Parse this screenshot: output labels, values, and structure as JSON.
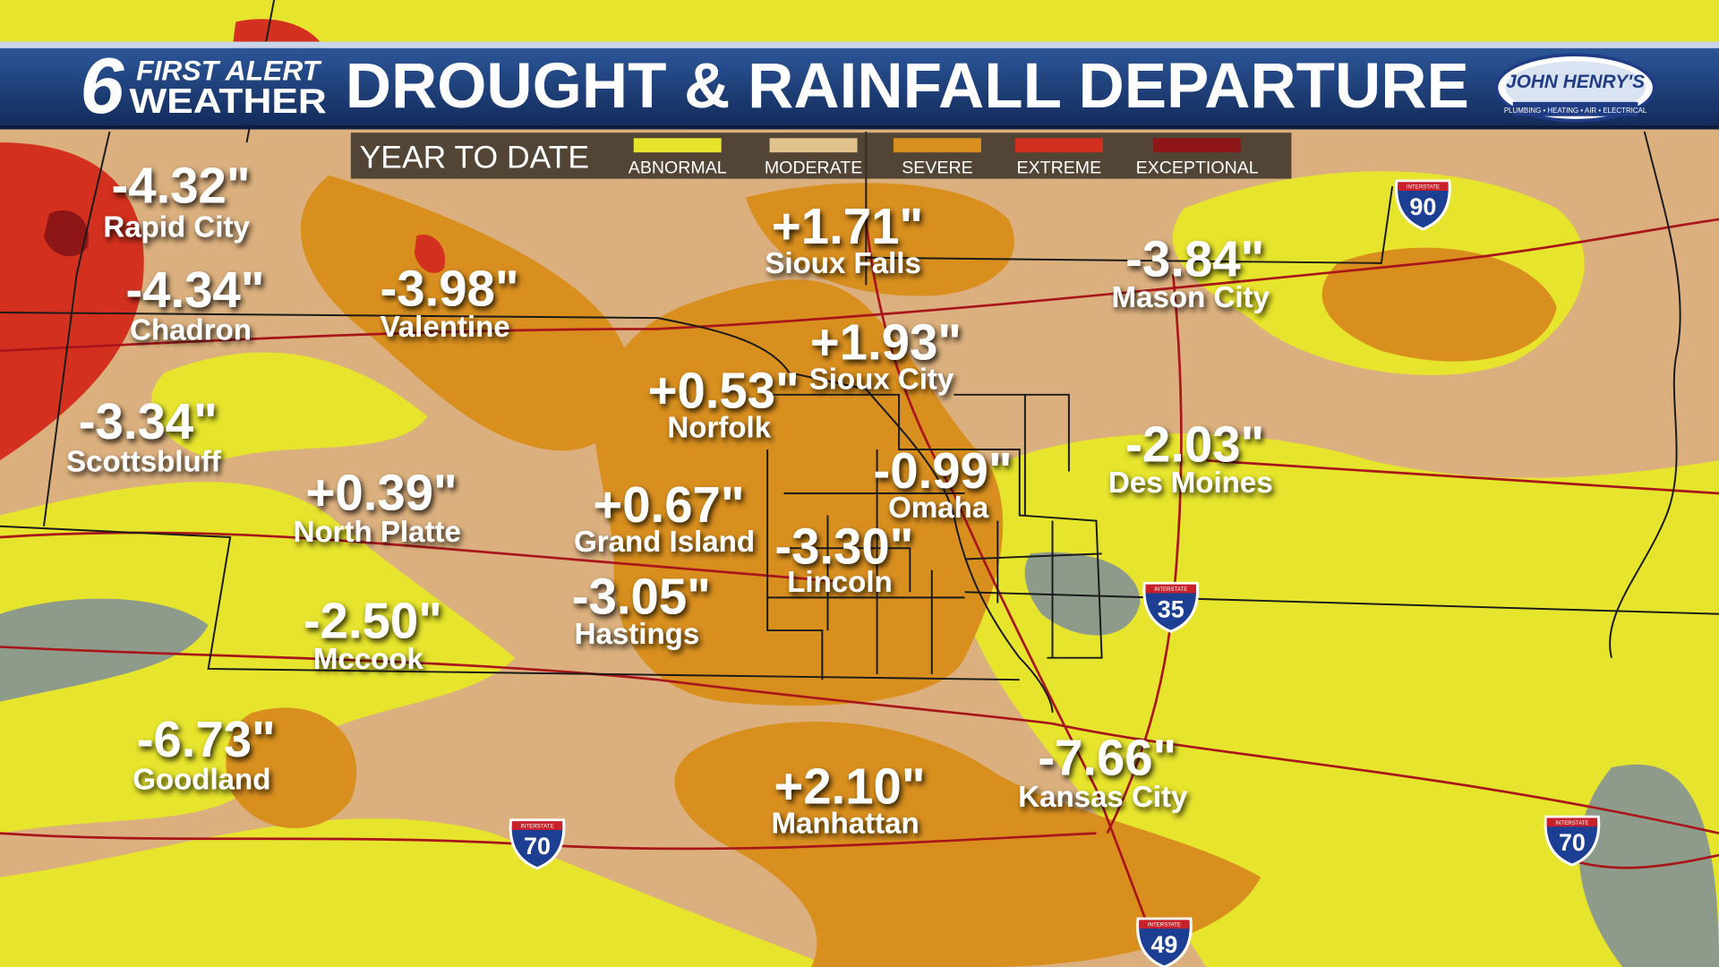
{
  "header": {
    "logo_number": "6",
    "logo_line1": "FIRST ALERT",
    "logo_line2": "WEATHER",
    "title": "DROUGHT & RAINFALL DEPARTURE",
    "sponsor": "JOHN HENRY'S",
    "sponsor_tagline": "PLUMBING • HEATING • AIR • ELECTRICAL"
  },
  "legend": {
    "label": "YEAR TO DATE",
    "items": [
      {
        "name": "ABNORMAL",
        "color": "#e6e42c"
      },
      {
        "name": "MODERATE",
        "color": "#e2c28c"
      },
      {
        "name": "SEVERE",
        "color": "#d98f1e"
      },
      {
        "name": "EXTREME",
        "color": "#d3301f"
      },
      {
        "name": "EXCEPTIONAL",
        "color": "#8e1616"
      }
    ]
  },
  "cities": [
    {
      "name": "Rapid City",
      "value": "-4.32\""
    },
    {
      "name": "Chadron",
      "value": "-4.34\""
    },
    {
      "name": "Valentine",
      "value": "-3.98\""
    },
    {
      "name": "Scottsbluff",
      "value": "-3.34\""
    },
    {
      "name": "North Platte",
      "value": "+0.39\""
    },
    {
      "name": "Mccook",
      "value": "-2.50\""
    },
    {
      "name": "Goodland",
      "value": "-6.73\""
    },
    {
      "name": "Sioux Falls",
      "value": "+1.71\""
    },
    {
      "name": "Sioux City",
      "value": "+1.93\""
    },
    {
      "name": "Norfolk",
      "value": "+0.53\""
    },
    {
      "name": "Grand Island",
      "value": "+0.67\""
    },
    {
      "name": "Omaha",
      "value": "-0.99\""
    },
    {
      "name": "Lincoln",
      "value": "-3.30\""
    },
    {
      "name": "Hastings",
      "value": "-3.05\""
    },
    {
      "name": "Mason City",
      "value": "-3.84\""
    },
    {
      "name": "Des Moines",
      "value": "-2.03\""
    },
    {
      "name": "Manhattan",
      "value": "+2.10\""
    },
    {
      "name": "Kansas City",
      "value": "-7.66\""
    }
  ],
  "interstates": {
    "label": "INTERSTATE",
    "routes": [
      "90",
      "35",
      "70",
      "70",
      "49"
    ]
  }
}
